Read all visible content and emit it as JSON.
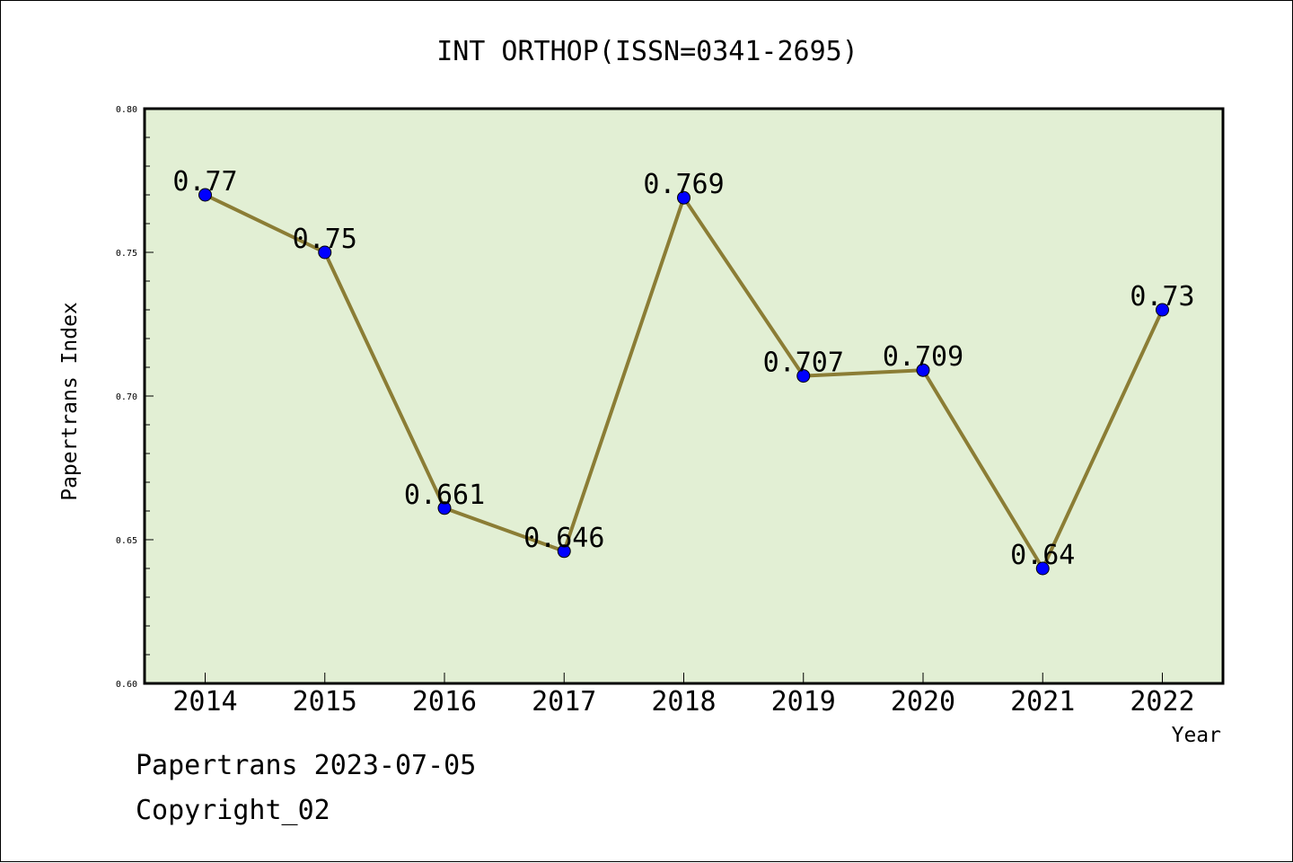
{
  "chart_data": {
    "type": "line",
    "title": "INT ORTHOP(ISSN=0341-2695)",
    "xlabel": "Year",
    "ylabel": "Papertrans Index",
    "categories": [
      "2014",
      "2015",
      "2016",
      "2017",
      "2018",
      "2019",
      "2020",
      "2021",
      "2022"
    ],
    "values": [
      0.77,
      0.75,
      0.661,
      0.646,
      0.769,
      0.707,
      0.709,
      0.64,
      0.73
    ],
    "value_labels": [
      "0.77",
      "0.75",
      "0.661",
      "0.646",
      "0.769",
      "0.707",
      "0.709",
      "0.64",
      "0.73"
    ],
    "ylim": [
      0.6,
      0.8
    ],
    "yticks": [
      0.6,
      0.65,
      0.7,
      0.75,
      0.8
    ],
    "ytick_labels": [
      "0.60",
      "0.65",
      "0.70",
      "0.75",
      "0.80"
    ],
    "grid": false,
    "colors": {
      "plot_background": "#e2efd4",
      "line": "#8b7d35",
      "marker": "#0000ff"
    }
  },
  "footer": {
    "source": "Papertrans 2023-07-05",
    "copyright": "Copyright_02"
  }
}
